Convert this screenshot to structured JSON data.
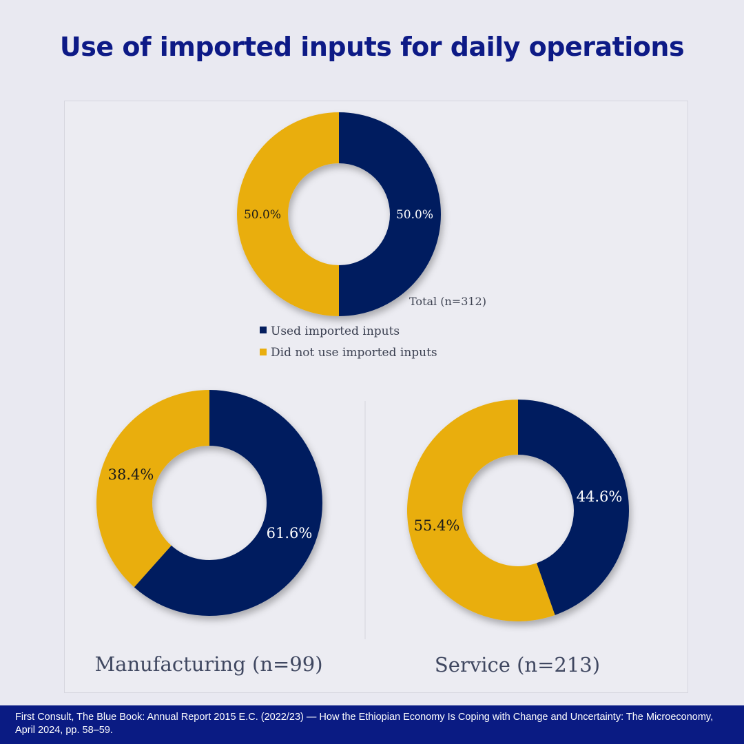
{
  "title": "Use of imported inputs for daily operations",
  "colors": {
    "used": "#041e5e",
    "not_used": "#e9ae0f",
    "title": "#0d1a86",
    "footer_bg": "#0a1b83"
  },
  "legend": {
    "used": "Used imported inputs",
    "not_used": "Did not use imported inputs"
  },
  "chart_data": [
    {
      "type": "pie",
      "title": "Total (n=312)",
      "categories": [
        "Used imported inputs",
        "Did not use imported inputs"
      ],
      "values": [
        50.0,
        50.0
      ],
      "labels": [
        "50.0%",
        "50.0%"
      ]
    },
    {
      "type": "pie",
      "title": "Manufacturing (n=99)",
      "categories": [
        "Used imported inputs",
        "Did not use imported inputs"
      ],
      "values": [
        61.6,
        38.4
      ],
      "labels": [
        "61.6%",
        "38.4%"
      ]
    },
    {
      "type": "pie",
      "title": "Service (n=213)",
      "categories": [
        "Used imported inputs",
        "Did not use imported inputs"
      ],
      "values": [
        44.6,
        55.4
      ],
      "labels": [
        "44.6%",
        "55.4%"
      ]
    }
  ],
  "footer": "First Consult, The Blue Book: Annual Report 2015 E.C. (2022/23) — How the Ethiopian Economy Is Coping with Change and Uncertainty: The Microeconomy, April 2024, pp. 58–59."
}
